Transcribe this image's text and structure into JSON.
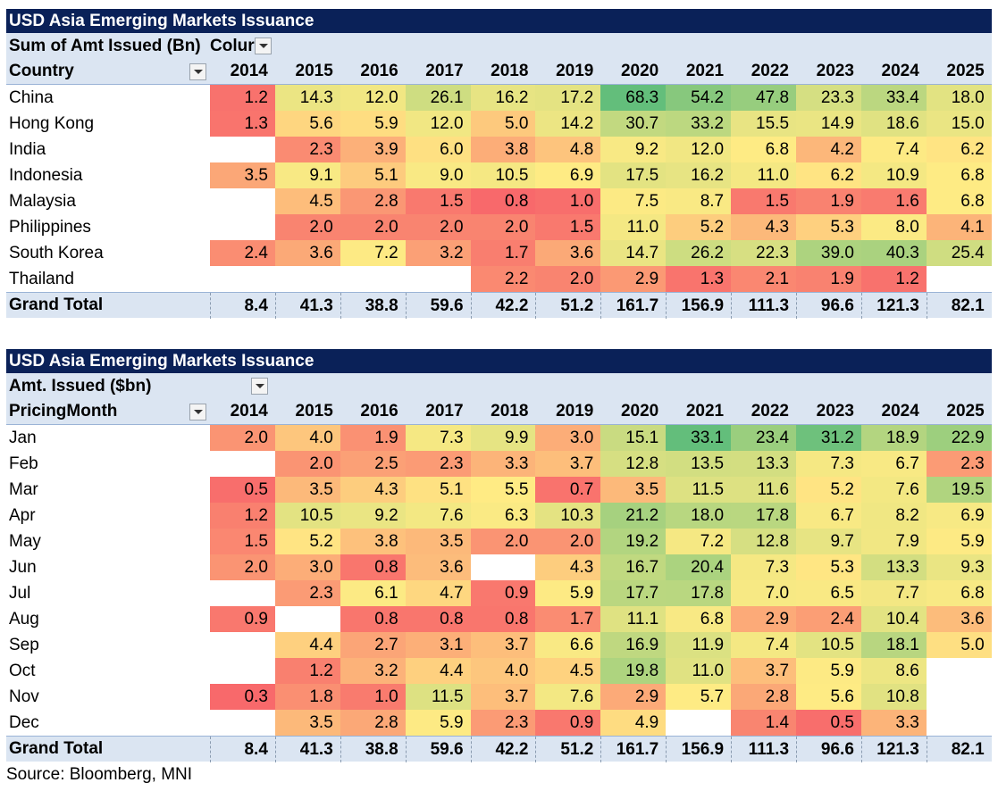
{
  "chart_data": [
    {
      "type": "table",
      "title": "USD Asia Emerging Markets Issuance",
      "value_field": "Sum of Amt Issued (Bn)",
      "column_field": "Colur",
      "row_field": "Country",
      "columns": [
        "2014",
        "2015",
        "2016",
        "2017",
        "2018",
        "2019",
        "2020",
        "2021",
        "2022",
        "2023",
        "2024",
        "2025"
      ],
      "rows": [
        {
          "label": "China",
          "values": [
            1.2,
            14.3,
            12.0,
            26.1,
            16.2,
            17.2,
            68.3,
            54.2,
            47.8,
            23.3,
            33.4,
            18.0
          ]
        },
        {
          "label": "Hong Kong",
          "values": [
            1.3,
            5.6,
            5.9,
            12.0,
            5.0,
            14.2,
            30.7,
            33.2,
            15.5,
            14.9,
            18.6,
            15.0
          ]
        },
        {
          "label": "India",
          "values": [
            null,
            2.3,
            3.9,
            6.0,
            3.8,
            4.8,
            9.2,
            12.0,
            6.8,
            4.2,
            7.4,
            6.2
          ]
        },
        {
          "label": "Indonesia",
          "values": [
            3.5,
            9.1,
            5.1,
            9.0,
            10.5,
            6.9,
            17.5,
            16.2,
            11.0,
            6.2,
            10.9,
            6.8
          ]
        },
        {
          "label": "Malaysia",
          "values": [
            null,
            4.5,
            2.8,
            1.5,
            0.8,
            1.0,
            7.5,
            8.7,
            1.5,
            1.9,
            1.6,
            6.8
          ]
        },
        {
          "label": "Philippines",
          "values": [
            null,
            2.0,
            2.0,
            2.0,
            2.0,
            1.5,
            11.0,
            5.2,
            4.3,
            5.3,
            8.0,
            4.1
          ]
        },
        {
          "label": "South Korea",
          "values": [
            2.4,
            3.6,
            7.2,
            3.2,
            1.7,
            3.6,
            14.7,
            26.2,
            22.3,
            39.0,
            40.3,
            25.4
          ]
        },
        {
          "label": "Thailand",
          "values": [
            null,
            null,
            null,
            null,
            2.2,
            2.0,
            2.9,
            1.3,
            2.1,
            1.9,
            1.2,
            null
          ]
        }
      ],
      "total": {
        "label": "Grand Total",
        "values": [
          8.4,
          41.3,
          38.8,
          59.6,
          42.2,
          51.2,
          161.7,
          156.9,
          111.3,
          96.6,
          121.3,
          82.1
        ]
      },
      "color_scale": {
        "low": "#f8696b",
        "mid": "#ffeb84",
        "high": "#63be7b"
      }
    },
    {
      "type": "table",
      "title": "USD Asia Emerging Markets Issuance",
      "value_field": "Amt. Issued ($bn)",
      "row_field": "PricingMonth",
      "columns": [
        "2014",
        "2015",
        "2016",
        "2017",
        "2018",
        "2019",
        "2020",
        "2021",
        "2022",
        "2023",
        "2024",
        "2025"
      ],
      "rows": [
        {
          "label": "Jan",
          "values": [
            2.0,
            4.0,
            1.9,
            7.3,
            9.9,
            3.0,
            15.1,
            33.1,
            23.4,
            31.2,
            18.9,
            22.9
          ]
        },
        {
          "label": "Feb",
          "values": [
            null,
            2.0,
            2.5,
            2.3,
            3.3,
            3.7,
            12.8,
            13.5,
            13.3,
            7.3,
            6.7,
            2.3
          ]
        },
        {
          "label": "Mar",
          "values": [
            0.5,
            3.5,
            4.3,
            5.1,
            5.5,
            0.7,
            3.5,
            11.5,
            11.6,
            5.2,
            7.6,
            19.5
          ]
        },
        {
          "label": "Apr",
          "values": [
            1.2,
            10.5,
            9.2,
            7.6,
            6.3,
            10.3,
            21.2,
            18.0,
            17.8,
            6.7,
            8.2,
            6.9
          ]
        },
        {
          "label": "May",
          "values": [
            1.5,
            5.2,
            3.8,
            3.5,
            2.0,
            2.0,
            19.2,
            7.2,
            12.8,
            9.7,
            7.9,
            5.9
          ]
        },
        {
          "label": "Jun",
          "values": [
            2.0,
            3.0,
            0.8,
            3.6,
            null,
            4.3,
            16.7,
            20.4,
            7.3,
            5.3,
            13.3,
            9.3
          ]
        },
        {
          "label": "Jul",
          "values": [
            null,
            2.3,
            6.1,
            4.7,
            0.9,
            5.9,
            17.7,
            17.8,
            7.0,
            6.5,
            7.7,
            6.8
          ]
        },
        {
          "label": "Aug",
          "values": [
            0.9,
            null,
            0.8,
            0.8,
            0.8,
            1.7,
            11.1,
            6.8,
            2.9,
            2.4,
            10.4,
            3.6
          ]
        },
        {
          "label": "Sep",
          "values": [
            null,
            4.4,
            2.7,
            3.1,
            3.7,
            6.6,
            16.9,
            11.9,
            7.4,
            10.5,
            18.1,
            5.0
          ]
        },
        {
          "label": "Oct",
          "values": [
            null,
            1.2,
            3.2,
            4.4,
            4.0,
            4.5,
            19.8,
            11.0,
            3.7,
            5.9,
            8.6,
            null
          ]
        },
        {
          "label": "Nov",
          "values": [
            0.3,
            1.8,
            1.0,
            11.5,
            3.7,
            7.6,
            2.9,
            5.7,
            2.8,
            5.6,
            10.8,
            null
          ]
        },
        {
          "label": "Dec",
          "values": [
            null,
            3.5,
            2.8,
            5.9,
            2.3,
            0.9,
            4.9,
            null,
            1.4,
            0.5,
            3.3,
            null
          ]
        }
      ],
      "total": {
        "label": "Grand Total",
        "values": [
          8.4,
          41.3,
          38.8,
          59.6,
          42.2,
          51.2,
          161.7,
          156.9,
          111.3,
          96.6,
          121.3,
          82.1
        ]
      },
      "color_scale": {
        "low": "#f8696b",
        "mid": "#ffeb84",
        "high": "#63be7b"
      }
    }
  ],
  "source": "Source: Bloomberg, MNI"
}
